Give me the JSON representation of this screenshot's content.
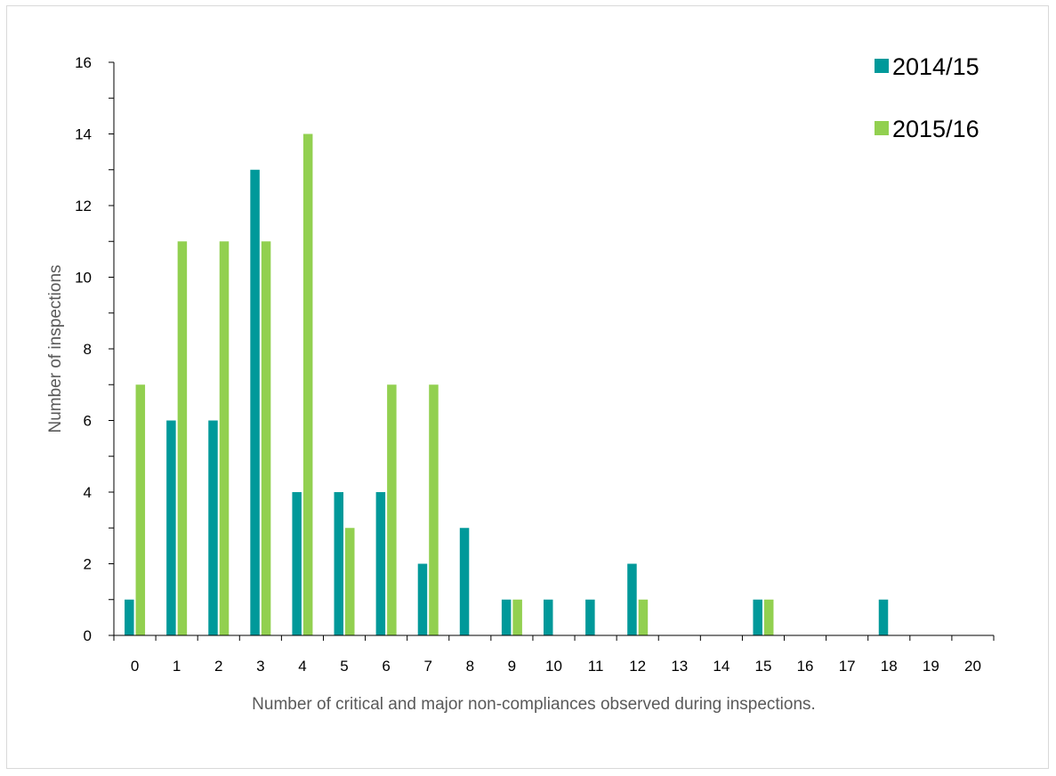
{
  "chart_data": {
    "type": "bar",
    "title": "",
    "xlabel": "Number of critical and major non-compliances observed during inspections.",
    "ylabel": "Number of inspections",
    "categories": [
      "0",
      "1",
      "2",
      "3",
      "4",
      "5",
      "6",
      "7",
      "8",
      "9",
      "10",
      "11",
      "12",
      "13",
      "14",
      "15",
      "16",
      "17",
      "18",
      "19",
      "20"
    ],
    "ylim": [
      0,
      16
    ],
    "yticks": [
      0,
      2,
      4,
      6,
      8,
      10,
      12,
      14,
      16
    ],
    "grid": false,
    "legend_position": "top-right",
    "series": [
      {
        "name": "2014/15",
        "color": "#00999a",
        "values": [
          1,
          6,
          6,
          13,
          4,
          4,
          4,
          2,
          3,
          1,
          1,
          1,
          2,
          0,
          0,
          1,
          0,
          0,
          1,
          0,
          0
        ]
      },
      {
        "name": "2015/16",
        "color": "#92d050",
        "values": [
          7,
          11,
          11,
          11,
          14,
          3,
          7,
          7,
          0,
          1,
          0,
          0,
          1,
          0,
          0,
          1,
          0,
          0,
          0,
          0,
          0
        ]
      }
    ]
  }
}
